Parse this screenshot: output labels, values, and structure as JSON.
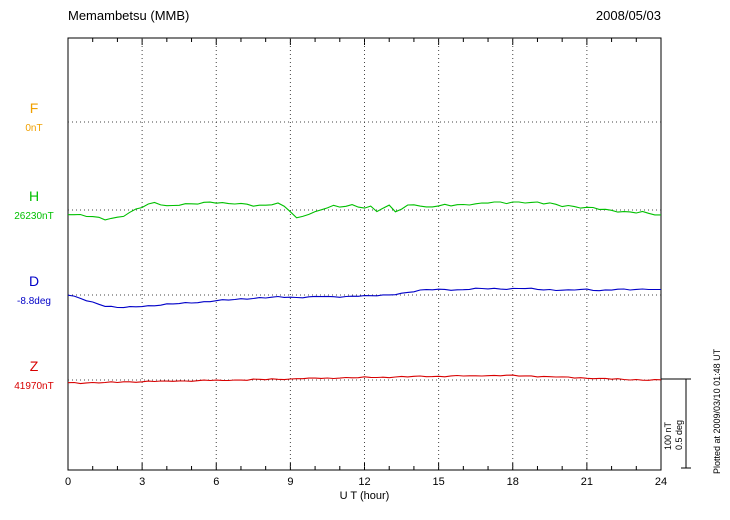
{
  "header": {
    "station": "Memambetsu (MMB)",
    "date": "2008/05/03"
  },
  "axis": {
    "xlabel": "U T (hour)",
    "x_ticks": [
      "0",
      "3",
      "6",
      "9",
      "12",
      "15",
      "18",
      "21",
      "24"
    ]
  },
  "series_labels": [
    {
      "name": "F",
      "value": "0nT",
      "color": "#f0a000"
    },
    {
      "name": "H",
      "value": "26230nT",
      "color": "#00c000"
    },
    {
      "name": "D",
      "value": "-8.8deg",
      "color": "#0000c8"
    },
    {
      "name": "Z",
      "value": "41970nT",
      "color": "#d80000"
    }
  ],
  "annotations": {
    "scale_nt": "100 nT",
    "scale_deg": "0.5 deg",
    "plotted_at": "Plotted at 2009/03/10 01:48 UT"
  },
  "chart_data": {
    "type": "line",
    "title": "Memambetsu (MMB)",
    "subtitle": "2008/05/03",
    "xlabel": "U T (hour)",
    "x_range_hours": [
      0,
      24
    ],
    "x_tick_step_hours": 3,
    "sample_interval_hours": 0.25,
    "grid": "dotted-vertical-at-3h-and-baselines",
    "scale_bar": {
      "nT": 100,
      "deg": 0.5
    },
    "series": [
      {
        "name": "F",
        "unit": "nT",
        "reference": 0,
        "reference_label": "0nT",
        "color": "#f0a000",
        "values": []
      },
      {
        "name": "H",
        "unit": "nT",
        "reference": 26230,
        "reference_label": "26230nT",
        "color": "#00c000",
        "values": [
          -4,
          -5,
          -6,
          -7,
          -8,
          -9,
          -10,
          -9,
          -8,
          -6,
          -3,
          0,
          3,
          6,
          8,
          7,
          5,
          5,
          6,
          6,
          6,
          7,
          8,
          9,
          9,
          8,
          7,
          7,
          6,
          6,
          5,
          5,
          6,
          7,
          7,
          4,
          -2,
          -10,
          -7,
          -4,
          -2,
          1,
          3,
          4,
          3,
          4,
          5,
          4,
          3,
          4,
          -1,
          2,
          4,
          -2,
          1,
          5,
          7,
          5,
          3,
          4,
          4,
          5,
          5,
          6,
          6,
          7,
          7,
          7,
          8,
          8,
          8,
          8,
          9,
          9,
          9,
          8,
          8,
          7,
          7,
          6,
          5,
          5,
          4,
          3,
          2,
          2,
          1,
          0,
          0,
          -1,
          -2,
          -2,
          -3,
          -3,
          -4,
          -5,
          -6
        ]
      },
      {
        "name": "D",
        "unit": "deg",
        "reference": -8.8,
        "reference_label": "-8.8deg",
        "color": "#0000c8",
        "values": [
          0,
          -0.01,
          -0.02,
          -0.03,
          -0.04,
          -0.05,
          -0.06,
          -0.065,
          -0.07,
          -0.07,
          -0.068,
          -0.065,
          -0.062,
          -0.06,
          -0.058,
          -0.055,
          -0.052,
          -0.05,
          -0.048,
          -0.045,
          -0.042,
          -0.04,
          -0.038,
          -0.035,
          -0.032,
          -0.03,
          -0.028,
          -0.025,
          -0.022,
          -0.02,
          -0.018,
          -0.016,
          -0.015,
          -0.014,
          -0.012,
          -0.012,
          -0.012,
          -0.014,
          -0.012,
          -0.01,
          -0.01,
          -0.008,
          -0.01,
          -0.012,
          -0.01,
          -0.008,
          -0.006,
          -0.004,
          -0.005,
          -0.006,
          -0.004,
          -0.002,
          0,
          0.005,
          0.01,
          0.015,
          0.02,
          0.025,
          0.028,
          0.03,
          0.03,
          0.032,
          0.03,
          0.028,
          0.03,
          0.032,
          0.034,
          0.035,
          0.035,
          0.036,
          0.035,
          0.034,
          0.035,
          0.036,
          0.035,
          0.034,
          0.032,
          0.03,
          0.03,
          0.028,
          0.028,
          0.026,
          0.028,
          0.03,
          0.03,
          0.028,
          0.026,
          0.028,
          0.03,
          0.032,
          0.03,
          0.028,
          0.03,
          0.032,
          0.034,
          0.032,
          0.03
        ]
      },
      {
        "name": "Z",
        "unit": "nT",
        "reference": 41970,
        "reference_label": "41970nT",
        "color": "#d80000",
        "values": [
          -3,
          -3,
          -3.5,
          -3,
          -3,
          -3,
          -3,
          -2.5,
          -2.5,
          -2,
          -2,
          -2,
          -2,
          -1.5,
          -1.5,
          -1.5,
          -1.5,
          -1,
          -1,
          -1,
          -1,
          -1,
          -0.5,
          -0.5,
          -0.5,
          -0.5,
          0,
          0,
          0,
          0,
          0.5,
          0.5,
          0.5,
          1,
          1,
          1,
          1,
          1.5,
          1.5,
          1.5,
          2,
          2,
          2,
          2,
          2.5,
          2.5,
          2.5,
          2.5,
          3,
          3,
          3,
          3,
          3,
          3.5,
          3.5,
          3.5,
          4,
          4,
          4,
          4,
          4,
          4,
          4.5,
          4.5,
          4.5,
          4.5,
          4.5,
          5,
          5,
          5,
          5,
          5,
          5,
          4.5,
          4.5,
          4.5,
          4,
          4,
          3.5,
          3.5,
          3,
          3,
          2.5,
          2.5,
          2,
          2,
          1.5,
          1.5,
          1,
          1,
          0.5,
          0.5,
          0.5,
          0,
          0,
          0,
          0
        ]
      }
    ]
  }
}
